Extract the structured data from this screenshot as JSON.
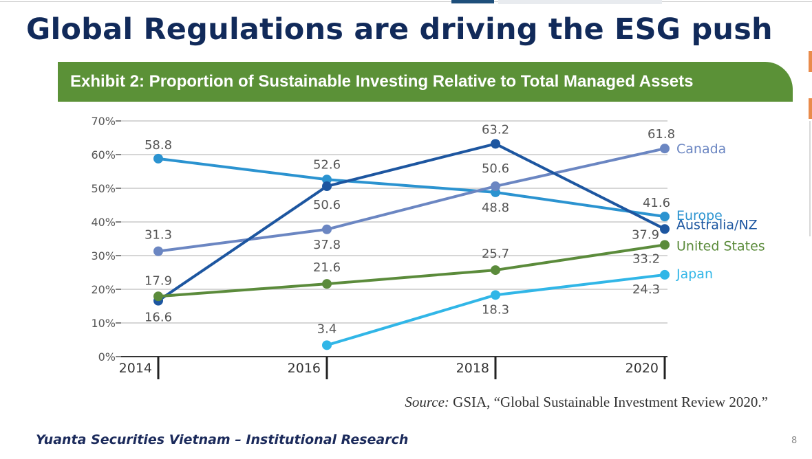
{
  "page": {
    "title": "Global Regulations are driving the ESG push",
    "footer": "Yuanta Securities Vietnam – Institutional Research",
    "page_number": "8"
  },
  "source": {
    "prefix": "Source:",
    "text": "GSIA, “Global Sustainable Investment Review 2020.”"
  },
  "chart_data": {
    "type": "line",
    "title": "Exhibit 2: Proportion of Sustainable Investing Relative to Total Managed Assets",
    "x": [
      2014,
      2016,
      2018,
      2020
    ],
    "x_tick_labels": [
      "2014",
      "2016",
      "2018",
      "2020"
    ],
    "ylim": [
      0,
      70
    ],
    "y_ticks": [
      0,
      10,
      20,
      30,
      40,
      50,
      60,
      70
    ],
    "y_tick_labels": [
      "0%",
      "10%",
      "20%",
      "30%",
      "40%",
      "50%",
      "60%",
      "70%"
    ],
    "grid": true,
    "legend": "right, inline at line ends",
    "series": [
      {
        "name": "Europe",
        "color": "#2b93d0",
        "values": [
          58.8,
          52.6,
          48.8,
          41.6
        ],
        "labels": [
          "58.8",
          "52.6",
          "48.8",
          "41.6"
        ]
      },
      {
        "name": "Canada",
        "color": "#6b86c2",
        "values": [
          31.3,
          37.8,
          50.6,
          61.8
        ],
        "labels": [
          "31.3",
          "37.8",
          "50.6",
          "61.8"
        ]
      },
      {
        "name": "Australia/NZ",
        "color": "#1d56a0",
        "values": [
          16.6,
          50.6,
          63.2,
          37.9
        ],
        "labels": [
          "16.6",
          "50.6",
          "63.2",
          "37.9"
        ]
      },
      {
        "name": "United States",
        "color": "#5b8b3b",
        "values": [
          17.9,
          21.6,
          25.7,
          33.2
        ],
        "labels": [
          "17.9",
          "21.6",
          "25.7",
          "33.2"
        ]
      },
      {
        "name": "Japan",
        "color": "#31b6e7",
        "values": [
          null,
          3.4,
          18.3,
          24.3
        ],
        "labels": [
          null,
          "3.4",
          "18.3",
          "24.3"
        ]
      }
    ]
  }
}
